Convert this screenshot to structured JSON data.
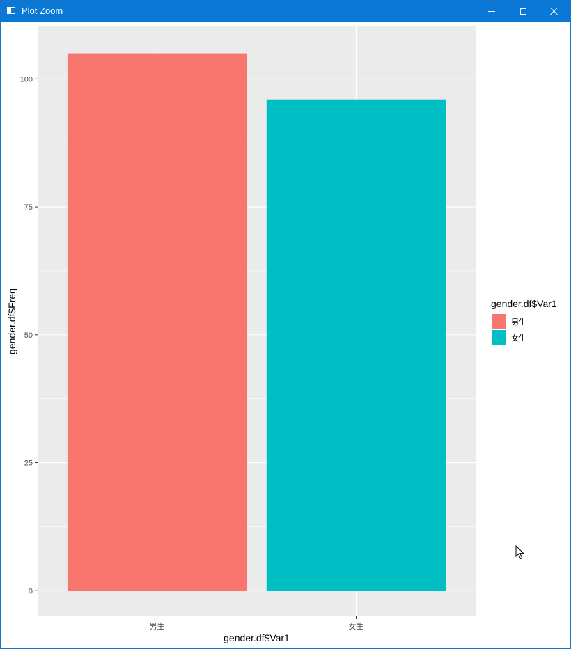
{
  "window": {
    "title": "Plot Zoom",
    "icons": {
      "app": "plot-window-icon",
      "minimize": "minimize-icon",
      "maximize": "maximize-icon",
      "close": "close-icon"
    }
  },
  "chart_data": {
    "type": "bar",
    "categories": [
      "男生",
      "女生"
    ],
    "values": [
      105,
      96
    ],
    "colors": [
      "#F8766D",
      "#00BFC4"
    ],
    "xlabel": "gender.df$Var1",
    "ylabel": "gender.df$Freq",
    "ylim": [
      -5,
      110.25
    ],
    "yticks": [
      0,
      25,
      50,
      75,
      100
    ],
    "grid": true,
    "panel_background": "#EBEBEB",
    "legend": {
      "title": "gender.df$Var1",
      "entries": [
        "男生",
        "女生"
      ],
      "placement": "right"
    }
  }
}
